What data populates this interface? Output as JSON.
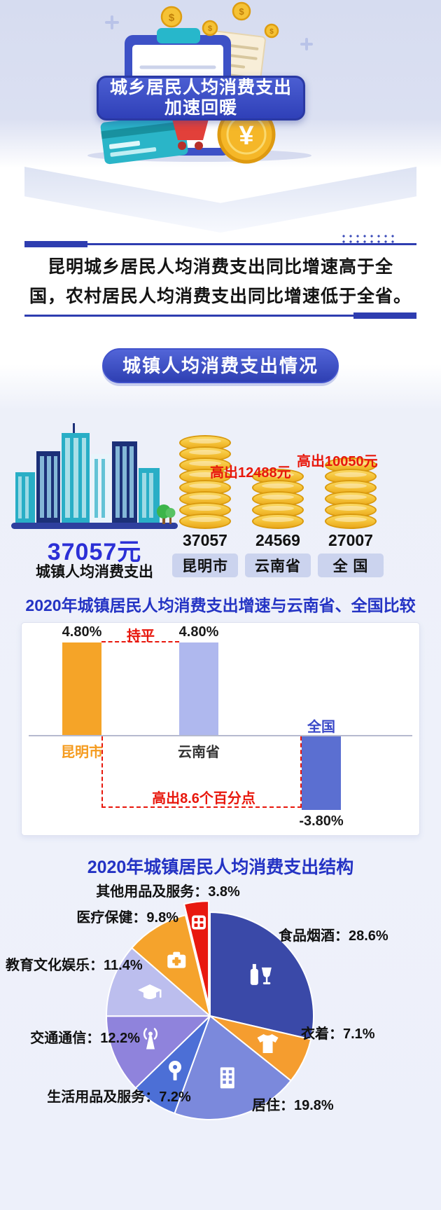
{
  "header": {
    "banner_line1": "城乡居民人均消费支出",
    "banner_line2": "加速回暖",
    "decor_icons": [
      "coins-icon",
      "clipboard-icon",
      "receipt-icon",
      "credit-card-icon",
      "shopping-cart-icon",
      "yuan-coin-icon",
      "city-illustration"
    ]
  },
  "statement": {
    "line1": "昆明城乡居民人均消费支出同比增速高于全",
    "line2": "国，农村居民人均消费支出同比增速低于全省。"
  },
  "highlight": {
    "value": "37057元",
    "label": "城镇人均消费支出"
  },
  "colors": {
    "title_blue": "#2433c4",
    "banner_blue": "#2f40b8",
    "red": "#e8170c",
    "coin_gold": "#f4c136",
    "bar_orange": "#f5a428",
    "bar_light_purple": "#afb8ee",
    "bar_blue": "#5b6fd1"
  },
  "chart_data": [
    {
      "type": "bar",
      "title": "城镇人均消费支出情况",
      "categories": [
        "昆明市",
        "云南省",
        "全 国"
      ],
      "values": [
        37057,
        24569,
        27007
      ],
      "unit": "元",
      "bar_style": "gold-coin-stacks",
      "annotations": [
        "高出12488元",
        "高出10050元"
      ]
    },
    {
      "type": "bar",
      "title": "2020年城镇居民人均消费支出增速与云南省、全国比较",
      "categories": [
        "昆明市",
        "云南省",
        "全国"
      ],
      "values": [
        4.8,
        4.8,
        -3.8
      ],
      "value_labels": [
        "4.80%",
        "4.80%",
        "-3.80%"
      ],
      "unit": "%",
      "annotations": [
        "持平",
        "高出8.6个百分点"
      ],
      "colors": [
        "#f5a428",
        "#afb8ee",
        "#5b6fd1"
      ],
      "ylim": [
        -5,
        6
      ],
      "grid": false
    },
    {
      "type": "pie",
      "title": "2020年城镇居民人均消费支出结构",
      "legend_position": "around",
      "slices": [
        {
          "label": "食品烟酒",
          "value": 28.6,
          "color": "#3a49a8",
          "icon": "wine-bottle-icon"
        },
        {
          "label": "衣着",
          "value": 7.1,
          "color": "#f59d2f",
          "icon": "tshirt-icon"
        },
        {
          "label": "居住",
          "value": 19.8,
          "color": "#7b89dc",
          "icon": "building-icon"
        },
        {
          "label": "生活用品及服务",
          "value": 7.2,
          "color": "#4c6fd6",
          "icon": "paper-roll-icon"
        },
        {
          "label": "交通通信",
          "value": 12.2,
          "color": "#8f83dc",
          "icon": "antenna-icon"
        },
        {
          "label": "教育文化娱乐",
          "value": 11.4,
          "color": "#bcbeee",
          "icon": "graduation-cap-icon"
        },
        {
          "label": "医疗保健",
          "value": 9.8,
          "color": "#f5a32c",
          "icon": "first-aid-icon"
        },
        {
          "label": "其他用品及服务",
          "value": 3.8,
          "color": "#e8190f",
          "icon": "pills-icon",
          "exploded": true
        }
      ]
    }
  ]
}
